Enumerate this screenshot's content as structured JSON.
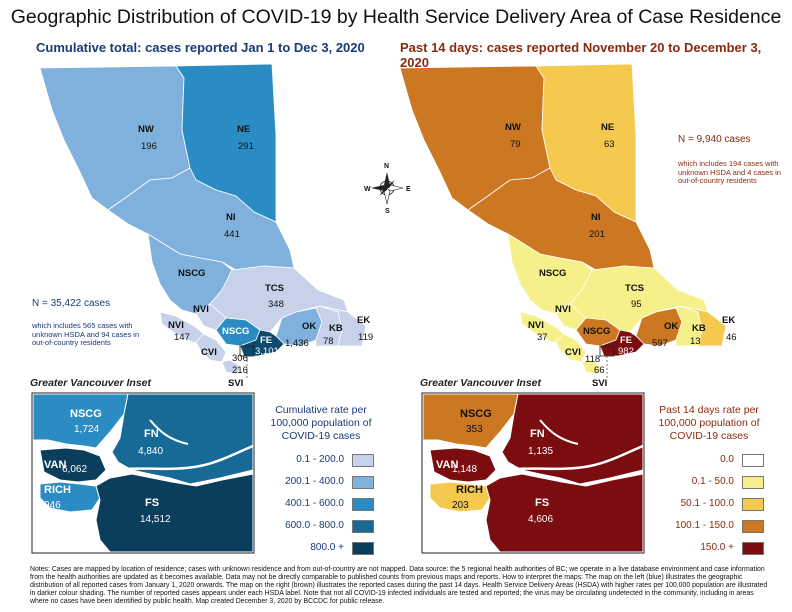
{
  "title": "Geographic Distribution of COVID-19 by Health Service Delivery Area of Case Residence",
  "left": {
    "subtitle": "Cumulative total: cases reported Jan 1 to Dec 3, 2020",
    "total": "N = 35,422 cases",
    "note": "which includes 565 cases with unknown HSDA and 94 cases in out-of-country residents",
    "regions": [
      {
        "name": "NW",
        "value": "196",
        "color": "#7fb1dc"
      },
      {
        "name": "NE",
        "value": "291",
        "color": "#2b8cc4"
      },
      {
        "name": "NI",
        "value": "441",
        "color": "#7fb1dc"
      },
      {
        "name": "NSCG",
        "value": "",
        "color": "#7fb1dc"
      },
      {
        "name": "TCS",
        "value": "348",
        "color": "#c7d2ea"
      },
      {
        "name": "NVI",
        "value": "",
        "color": "#c7d2ea"
      },
      {
        "name": "NVI",
        "value": "147",
        "color": "#c7d2ea"
      },
      {
        "name": "NSCG",
        "value": "",
        "color": "#2b8cc4"
      },
      {
        "name": "OK",
        "value": "1,436",
        "color": "#7fb1dc"
      },
      {
        "name": "KB",
        "value": "78",
        "color": "#c7d2ea"
      },
      {
        "name": "EK",
        "value": "119",
        "color": "#c7d2ea"
      },
      {
        "name": "CVI",
        "value": "306",
        "color": "#c7d2ea"
      },
      {
        "name": "FE",
        "value": "3,101",
        "color": "#0b4a6e"
      },
      {
        "name": "SVI",
        "value": "216",
        "color": "#c7d2ea"
      }
    ],
    "inset_label": "Greater Vancouver Inset",
    "inset": [
      {
        "name": "NSCG",
        "value": "1,724"
      },
      {
        "name": "FN",
        "value": "4,840"
      },
      {
        "name": "VAN",
        "value": "6,062"
      },
      {
        "name": "RICH",
        "value": "946"
      },
      {
        "name": "FS",
        "value": "14,512"
      }
    ],
    "legend_title": "Cumulative rate per 100,000 population of COVID-19 cases",
    "legend": [
      {
        "label": "0.1 - 200.0",
        "color": "#c7d2ea"
      },
      {
        "label": "200.1 - 400.0",
        "color": "#7fb1dc"
      },
      {
        "label": "400.1 - 600.0",
        "color": "#2b8cc4"
      },
      {
        "label": "600.0 - 800.0",
        "color": "#176a96"
      },
      {
        "label": "800.0 +",
        "color": "#0b3d5c"
      }
    ]
  },
  "right": {
    "subtitle": "Past 14 days: cases reported November 20 to December 3, 2020",
    "total": "N = 9,940 cases",
    "note": "which includes 194 cases with unknown HSDA and 4 cases in out-of-country residents",
    "regions": [
      {
        "name": "NW",
        "value": "79",
        "color": "#cc7722"
      },
      {
        "name": "NE",
        "value": "63",
        "color": "#f5c94e"
      },
      {
        "name": "NI",
        "value": "201",
        "color": "#cc7722"
      },
      {
        "name": "NSCG",
        "value": "",
        "color": "#f5f08a"
      },
      {
        "name": "TCS",
        "value": "95",
        "color": "#f5f08a"
      },
      {
        "name": "NVI",
        "value": "",
        "color": "#f5f08a"
      },
      {
        "name": "NVI",
        "value": "37",
        "color": "#f5f08a"
      },
      {
        "name": "NSCG",
        "value": "",
        "color": "#cc7722"
      },
      {
        "name": "OK",
        "value": "597",
        "color": "#cc7722"
      },
      {
        "name": "KB",
        "value": "13",
        "color": "#f5f08a"
      },
      {
        "name": "EK",
        "value": "46",
        "color": "#f5c94e"
      },
      {
        "name": "CVI",
        "value": "118",
        "color": "#f5f08a"
      },
      {
        "name": "FE",
        "value": "982",
        "color": "#7b0c10"
      },
      {
        "name": "SVI",
        "value": "66",
        "color": "#f5f08a"
      }
    ],
    "inset_label": "Greater Vancouver Inset",
    "inset": [
      {
        "name": "NSCG",
        "value": "353"
      },
      {
        "name": "FN",
        "value": "1,135"
      },
      {
        "name": "VAN",
        "value": "1,148"
      },
      {
        "name": "RICH",
        "value": "203"
      },
      {
        "name": "FS",
        "value": "4,606"
      }
    ],
    "legend_title": "Past 14 days rate per 100,000 population of COVID-19 cases",
    "legend": [
      {
        "label": "0.0",
        "color": "#ffffff"
      },
      {
        "label": "0.1 - 50.0",
        "color": "#f5f08a"
      },
      {
        "label": "50.1 - 100.0",
        "color": "#f5c94e"
      },
      {
        "label": "100.1 - 150.0",
        "color": "#cc7722"
      },
      {
        "label": "150.0 +",
        "color": "#7b0c10"
      }
    ]
  },
  "compass": {
    "n": "N",
    "s": "S",
    "e": "E",
    "w": "W"
  },
  "notes": "Notes: Cases are mapped by location of residence; cases with unknown residence and from out-of-country are not mapped. Data source: the 5 regional health authorities of BC; we operate in a live database environment and case information from the health authorities are updated as it becomes available. Data may not be directly comparable to published counts from previous maps and reports. How to interpret the maps: The map on the left (blue) illustrates the geographic distribution of all reported cases from January 1, 2020 onwards. The map on the right (brown) illustrates the reported cases during the past 14 days. Health Service Delivery Areas (HSDA) with higher rates per 100,000 population are illustrated in darker colour shading. The number of reported cases appears under each HSDA label. Note that not all COVID-19 infected individuals are tested and reported; the virus may be circulating undetected in the community, including in areas where no cases have been identified by public health. Map created December 3, 2020 by BCCDC for public release."
}
